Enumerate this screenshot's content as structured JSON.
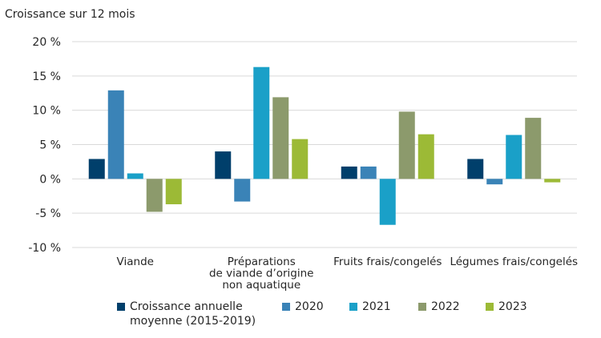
{
  "chart_data": {
    "type": "bar",
    "title": "",
    "ylabel": "Croissance sur 12 mois",
    "xlabel": "",
    "ylim": [
      -10,
      20
    ],
    "yticks": [
      20,
      15,
      10,
      5,
      0,
      -5,
      -10
    ],
    "ytick_labels": [
      "20 %",
      "15 %",
      "10 %",
      "5 %",
      "0 %",
      "-5 %",
      "-10 %"
    ],
    "grid": true,
    "legend_position": "bottom",
    "categories": [
      {
        "lines": [
          "Viande"
        ]
      },
      {
        "lines": [
          "Préparations",
          "de viande d’origine",
          "non aquatique"
        ]
      },
      {
        "lines": [
          "Fruits frais/congelés"
        ]
      },
      {
        "lines": [
          "Légumes frais/congelés"
        ]
      }
    ],
    "series": [
      {
        "name": "Croissance annuelle moyenne (2015-2019)",
        "legend_lines": [
          "Croissance annuelle",
          "moyenne (2015-2019)"
        ],
        "color": "#003f6b",
        "values": [
          2.9,
          4.0,
          1.8,
          2.9
        ]
      },
      {
        "name": "2020",
        "legend_lines": [
          "2020"
        ],
        "color": "#3a83b7",
        "values": [
          12.9,
          -3.3,
          1.8,
          -0.8
        ]
      },
      {
        "name": "2021",
        "legend_lines": [
          "2021"
        ],
        "color": "#1aa0c8",
        "values": [
          0.8,
          16.3,
          -6.7,
          6.4
        ]
      },
      {
        "name": "2022",
        "legend_lines": [
          "2022"
        ],
        "color": "#8c9a6c",
        "values": [
          -4.8,
          11.9,
          9.8,
          8.9
        ]
      },
      {
        "name": "2023",
        "legend_lines": [
          "2023"
        ],
        "color": "#9cba36",
        "values": [
          -3.7,
          5.8,
          6.5,
          -0.5
        ]
      }
    ]
  }
}
